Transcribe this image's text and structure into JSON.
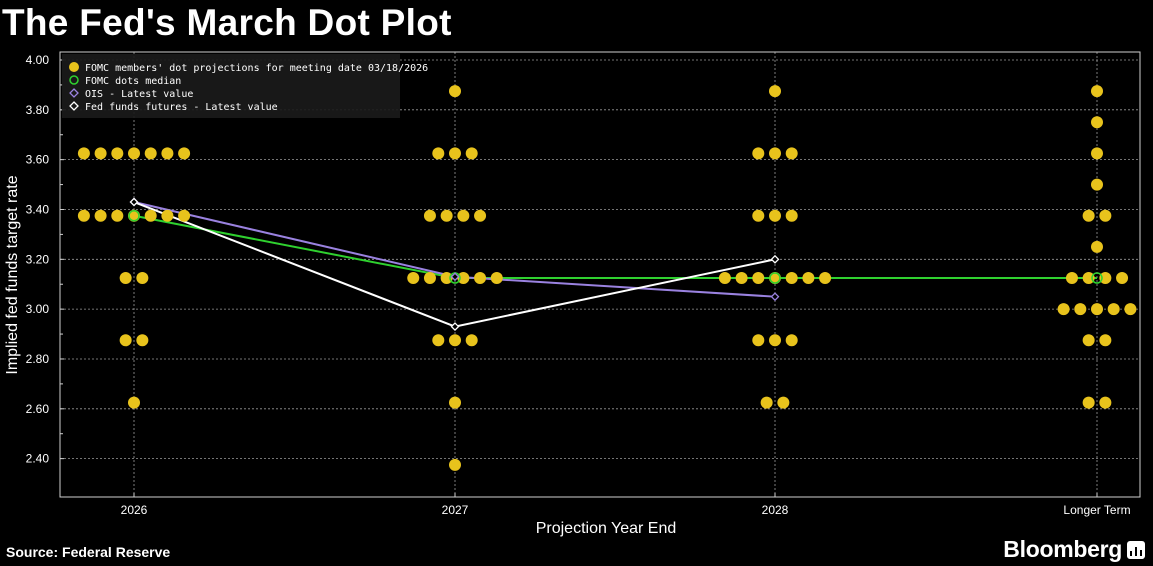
{
  "header": {
    "title": "The Fed's March Dot Plot"
  },
  "footer": {
    "source": "Source: Federal Reserve",
    "brand": "Bloomberg"
  },
  "colors": {
    "dot": "#e8c31c",
    "median": "#2fd12f",
    "ois": "#9a82e0",
    "futures": "#ffffff",
    "grid": "#9a9a9a",
    "background": "#000000"
  },
  "chart_data": {
    "type": "scatter",
    "title": "The Fed's March Dot Plot",
    "xlabel": "Projection Year End",
    "ylabel": "Implied fed funds target rate",
    "ylim": [
      2.2,
      4.0
    ],
    "yticks": [
      "4.00",
      "3.80",
      "3.60",
      "3.40",
      "3.20",
      "3.00",
      "2.80",
      "2.60",
      "2.40"
    ],
    "categories": [
      "2026",
      "2027",
      "2028",
      "Longer Term"
    ],
    "grid": true,
    "legend_position": "top-left",
    "legend": [
      "FOMC members' dot projections for meeting date 03/18/2026",
      "FOMC dots median",
      "OIS - Latest value",
      "Fed funds futures - Latest value"
    ],
    "dots": [
      {
        "category": "2026",
        "counts": [
          [
            3.625,
            7
          ],
          [
            3.375,
            7
          ],
          [
            3.125,
            2
          ],
          [
            2.875,
            2
          ],
          [
            2.625,
            1
          ]
        ]
      },
      {
        "category": "2027",
        "counts": [
          [
            3.875,
            1
          ],
          [
            3.625,
            3
          ],
          [
            3.375,
            4
          ],
          [
            3.125,
            6
          ],
          [
            2.875,
            3
          ],
          [
            2.625,
            1
          ],
          [
            2.375,
            1
          ]
        ]
      },
      {
        "category": "2028",
        "counts": [
          [
            3.875,
            1
          ],
          [
            3.625,
            3
          ],
          [
            3.375,
            3
          ],
          [
            3.125,
            7
          ],
          [
            2.875,
            3
          ],
          [
            2.625,
            2
          ]
        ]
      },
      {
        "category": "Longer Term",
        "counts": [
          [
            3.875,
            1
          ],
          [
            3.75,
            1
          ],
          [
            3.625,
            1
          ],
          [
            3.5,
            1
          ],
          [
            3.375,
            2
          ],
          [
            3.25,
            1
          ],
          [
            3.125,
            4
          ],
          [
            3.0,
            5
          ],
          [
            2.875,
            2
          ],
          [
            2.625,
            2
          ]
        ]
      }
    ],
    "series": [
      {
        "name": "FOMC dots median",
        "values": [
          3.375,
          3.125,
          3.125,
          3.125
        ]
      },
      {
        "name": "OIS - Latest value",
        "values": [
          3.43,
          3.13,
          3.05,
          null
        ]
      },
      {
        "name": "Fed funds futures - Latest value",
        "values": [
          3.43,
          2.93,
          3.2,
          null
        ]
      }
    ]
  }
}
